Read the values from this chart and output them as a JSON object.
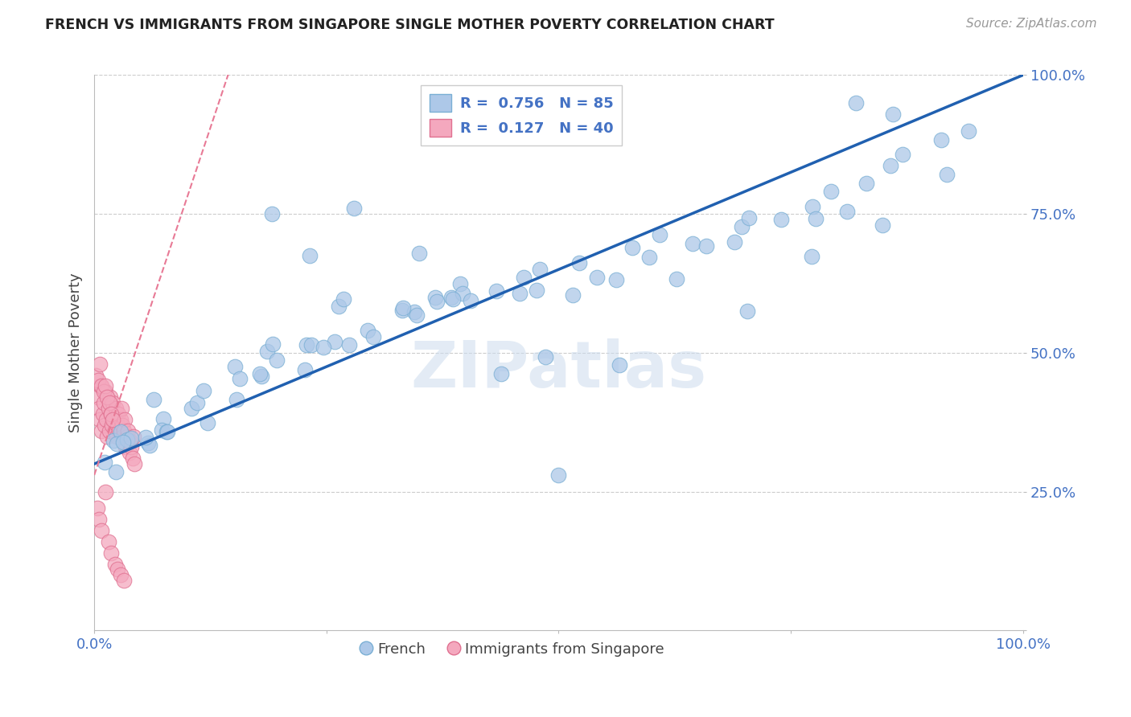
{
  "title": "FRENCH VS IMMIGRANTS FROM SINGAPORE SINGLE MOTHER POVERTY CORRELATION CHART",
  "source": "Source: ZipAtlas.com",
  "ylabel": "Single Mother Poverty",
  "xlim": [
    0.0,
    1.0
  ],
  "ylim": [
    0.0,
    1.0
  ],
  "watermark": "ZIPatlas",
  "legend_french": "French",
  "legend_singapore": "Immigrants from Singapore",
  "R_french": 0.756,
  "N_french": 85,
  "R_singapore": 0.127,
  "N_singapore": 40,
  "french_color": "#adc8e8",
  "french_edge_color": "#7aafd4",
  "singapore_color": "#f4a8be",
  "singapore_edge_color": "#e07090",
  "trend_french_color": "#2060b0",
  "trend_singapore_color": "#e87a96",
  "tick_color": "#4472c4",
  "grid_color": "#cccccc",
  "french_x": [
    0.01,
    0.015,
    0.02,
    0.025,
    0.03,
    0.035,
    0.04,
    0.045,
    0.05,
    0.055,
    0.06,
    0.065,
    0.07,
    0.075,
    0.08,
    0.09,
    0.1,
    0.11,
    0.12,
    0.13,
    0.14,
    0.15,
    0.16,
    0.17,
    0.18,
    0.19,
    0.2,
    0.21,
    0.22,
    0.23,
    0.24,
    0.25,
    0.26,
    0.27,
    0.28,
    0.3,
    0.31,
    0.32,
    0.33,
    0.35,
    0.36,
    0.37,
    0.38,
    0.4,
    0.41,
    0.42,
    0.43,
    0.44,
    0.46,
    0.48,
    0.5,
    0.52,
    0.54,
    0.56,
    0.58,
    0.6,
    0.62,
    0.64,
    0.66,
    0.68,
    0.7,
    0.72,
    0.74,
    0.76,
    0.78,
    0.8,
    0.82,
    0.84,
    0.86,
    0.88,
    0.9,
    0.92,
    0.94,
    0.18,
    0.22,
    0.27,
    0.33,
    0.38,
    0.44,
    0.5,
    0.56,
    0.62,
    0.7,
    0.78,
    0.85
  ],
  "french_y": [
    0.3,
    0.31,
    0.31,
    0.32,
    0.32,
    0.33,
    0.33,
    0.34,
    0.34,
    0.35,
    0.35,
    0.36,
    0.36,
    0.37,
    0.37,
    0.38,
    0.39,
    0.4,
    0.41,
    0.42,
    0.43,
    0.44,
    0.45,
    0.46,
    0.47,
    0.47,
    0.48,
    0.49,
    0.5,
    0.5,
    0.51,
    0.52,
    0.52,
    0.53,
    0.54,
    0.55,
    0.55,
    0.56,
    0.57,
    0.57,
    0.58,
    0.58,
    0.59,
    0.6,
    0.6,
    0.61,
    0.62,
    0.62,
    0.63,
    0.64,
    0.65,
    0.66,
    0.67,
    0.68,
    0.68,
    0.69,
    0.7,
    0.71,
    0.72,
    0.73,
    0.74,
    0.75,
    0.76,
    0.77,
    0.78,
    0.79,
    0.8,
    0.81,
    0.82,
    0.83,
    0.84,
    0.86,
    0.88,
    0.72,
    0.65,
    0.62,
    0.57,
    0.55,
    0.5,
    0.48,
    0.45,
    0.65,
    0.56,
    0.7,
    0.75
  ],
  "french_outliers_x": [
    0.28,
    0.35,
    0.48,
    0.5,
    0.82,
    0.86
  ],
  "french_outliers_y": [
    0.76,
    0.68,
    0.65,
    0.28,
    0.95,
    0.93
  ],
  "singapore_x": [
    0.003,
    0.005,
    0.006,
    0.007,
    0.008,
    0.009,
    0.01,
    0.011,
    0.012,
    0.013,
    0.014,
    0.015,
    0.016,
    0.017,
    0.018,
    0.019,
    0.02,
    0.021,
    0.022,
    0.023,
    0.024,
    0.025,
    0.026,
    0.027,
    0.028,
    0.029,
    0.03,
    0.031,
    0.032,
    0.033,
    0.034,
    0.035,
    0.036,
    0.037,
    0.038,
    0.039,
    0.04,
    0.041,
    0.042,
    0.043
  ],
  "singapore_y": [
    0.42,
    0.4,
    0.38,
    0.44,
    0.36,
    0.39,
    0.41,
    0.37,
    0.43,
    0.38,
    0.35,
    0.4,
    0.36,
    0.42,
    0.39,
    0.37,
    0.41,
    0.38,
    0.36,
    0.4,
    0.35,
    0.37,
    0.39,
    0.36,
    0.38,
    0.4,
    0.37,
    0.35,
    0.36,
    0.38,
    0.33,
    0.35,
    0.36,
    0.34,
    0.32,
    0.34,
    0.33,
    0.31,
    0.35,
    0.3
  ],
  "singapore_outliers_x": [
    0.002,
    0.004,
    0.006,
    0.008,
    0.01,
    0.012,
    0.014,
    0.016,
    0.018,
    0.02,
    0.003,
    0.005,
    0.008,
    0.012,
    0.015,
    0.018,
    0.022,
    0.025,
    0.028,
    0.032
  ],
  "singapore_outliers_y": [
    0.46,
    0.45,
    0.48,
    0.44,
    0.43,
    0.44,
    0.42,
    0.41,
    0.39,
    0.38,
    0.22,
    0.2,
    0.18,
    0.25,
    0.16,
    0.14,
    0.12,
    0.11,
    0.1,
    0.09
  ]
}
